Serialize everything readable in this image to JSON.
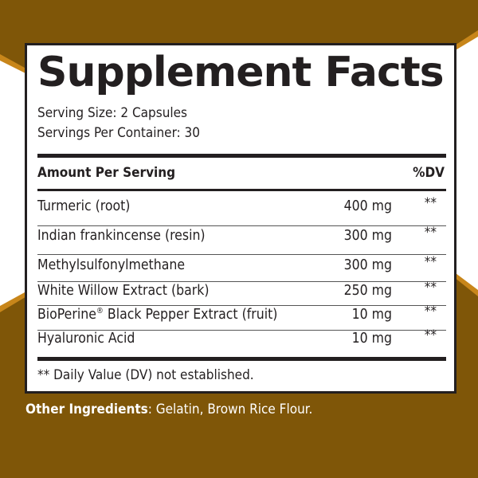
{
  "colors": {
    "background": "#7f5608",
    "accent_stripe": "#c8861a",
    "label_bg": "#ffffff",
    "text": "#231f20"
  },
  "title": "Supplement Facts",
  "serving_size": "Serving Size: 2 Capsules",
  "servings_per_container": "Servings Per Container: 30",
  "header": {
    "amount": "Amount Per Serving",
    "dv": "%DV"
  },
  "rows": [
    {
      "name": "Turmeric (root)",
      "amount": "400 mg",
      "dv": "**"
    },
    {
      "name": "Indian frankincense (resin)",
      "amount": "300 mg",
      "dv": "**"
    },
    {
      "name": "Methylsulfonylmethane",
      "amount": "300 mg",
      "dv": "**"
    },
    {
      "name": "White Willow Extract (bark)",
      "amount": "250 mg",
      "dv": "**"
    },
    {
      "name": "BioPerine",
      "name_mark": "®",
      "name_rest": " Black Pepper Extract (fruit)",
      "amount": "10 mg",
      "dv": "**"
    },
    {
      "name": "Hyaluronic Acid",
      "amount": "10 mg",
      "dv": "**"
    }
  ],
  "footnote": "** Daily Value (DV) not established.",
  "other": {
    "label": "Other Ingredients",
    "text": ": Gelatin, Brown Rice Flour."
  }
}
